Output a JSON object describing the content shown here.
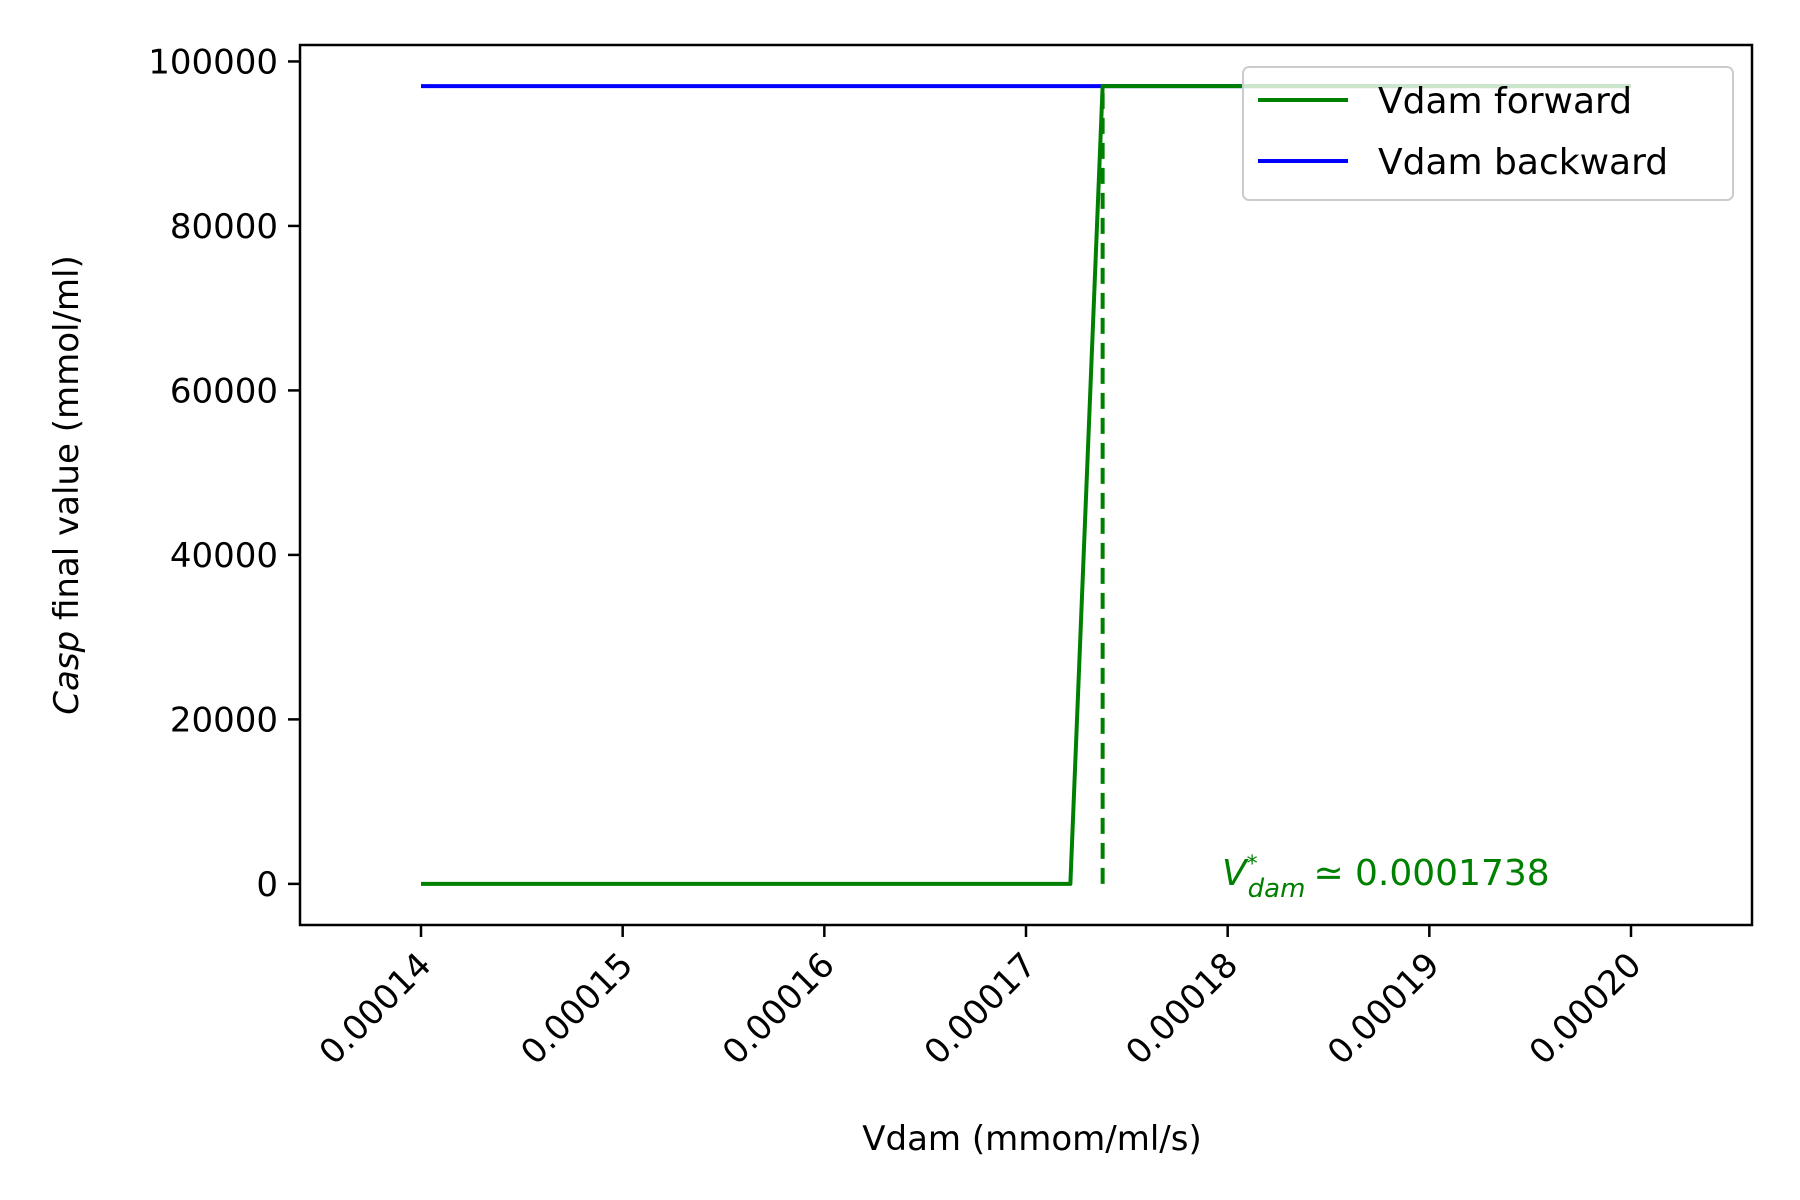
{
  "chart_data": {
    "type": "line",
    "xlabel": "Vdam (mmom/ml/s)",
    "ylabel_italic": "Casp",
    "ylabel_rest": " final value (mmol/ml)",
    "xlim": [
      0.000134,
      0.000206
    ],
    "ylim": [
      -5000,
      102000
    ],
    "x_ticks": [
      {
        "value": 0.00014,
        "label": "0.00014"
      },
      {
        "value": 0.00015,
        "label": "0.00015"
      },
      {
        "value": 0.00016,
        "label": "0.00016"
      },
      {
        "value": 0.00017,
        "label": "0.00017"
      },
      {
        "value": 0.00018,
        "label": "0.00018"
      },
      {
        "value": 0.00019,
        "label": "0.00019"
      },
      {
        "value": 0.0002,
        "label": "0.00020"
      }
    ],
    "y_ticks": [
      {
        "value": 0,
        "label": "0"
      },
      {
        "value": 20000,
        "label": "20000"
      },
      {
        "value": 40000,
        "label": "40000"
      },
      {
        "value": 60000,
        "label": "60000"
      },
      {
        "value": 80000,
        "label": "80000"
      },
      {
        "value": 100000,
        "label": "100000"
      }
    ],
    "series": [
      {
        "name": "Vdam forward",
        "color": "#008000",
        "points": [
          [
            0.00014,
            0
          ],
          [
            0.0001722,
            0
          ],
          [
            0.0001738,
            97000
          ],
          [
            0.0002,
            97000
          ]
        ]
      },
      {
        "name": "Vdam backward",
        "color": "#0000ff",
        "points": [
          [
            0.00014,
            97000
          ],
          [
            0.0002,
            97000
          ]
        ]
      }
    ],
    "threshold": {
      "x": 0.0001738,
      "y_range": [
        0,
        97000
      ],
      "color": "#008000",
      "style": "dashed"
    },
    "annotation": {
      "symbol": "V",
      "superscript": "*",
      "subscript": "dam",
      "text": "≃ 0.0001738",
      "color": "#008000",
      "x": 0.000179,
      "y": 0
    },
    "legend": {
      "position": "top-right",
      "entries": [
        "Vdam forward",
        "Vdam backward"
      ]
    },
    "grid": false
  }
}
